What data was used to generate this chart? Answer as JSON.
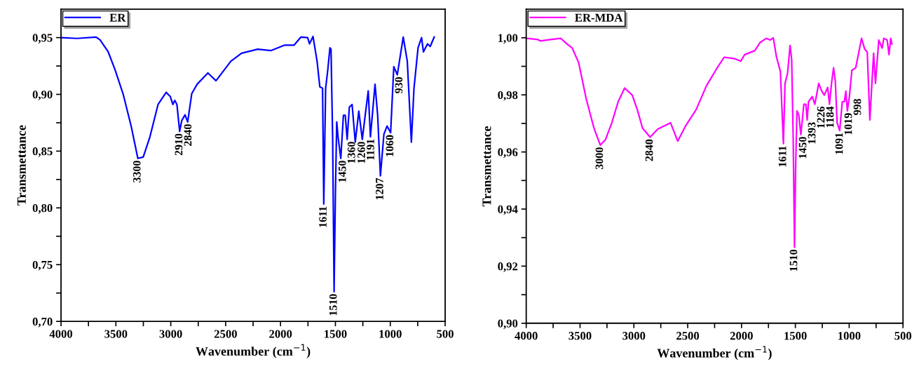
{
  "chart_data": [
    {
      "type": "line",
      "xlabel": "Wavenumber (cm$^{−1}$)",
      "ylabel": "Transmettance",
      "legend": "top left",
      "grid": false,
      "marker": "none",
      "line_style": "solid",
      "xlim": [
        4000,
        500
      ],
      "ylim": [
        0.7,
        0.975
      ],
      "xticks": [
        4000,
        {
          "value": 3750,
          "label": null
        },
        3500,
        {
          "value": 3250,
          "label": null
        },
        3000,
        {
          "value": 2750,
          "label": null
        },
        2500,
        {
          "value": 2250,
          "label": null
        },
        2000,
        {
          "value": 1750,
          "label": null
        },
        1500,
        {
          "value": 1250,
          "label": null
        },
        1000,
        {
          "value": 750,
          "label": null
        },
        500
      ],
      "yticks": [
        {
          "value": 0.7,
          "label": "0,70"
        },
        {
          "value": 0.725,
          "label": null
        },
        {
          "value": 0.75,
          "label": "0,75"
        },
        {
          "value": 0.775,
          "label": null
        },
        {
          "value": 0.8,
          "label": "0,80"
        },
        {
          "value": 0.825,
          "label": null
        },
        {
          "value": 0.85,
          "label": "0,85"
        },
        {
          "value": 0.875,
          "label": null
        },
        {
          "value": 0.9,
          "label": "0,90"
        },
        {
          "value": 0.925,
          "label": null
        },
        {
          "value": 0.95,
          "label": "0,95"
        }
      ],
      "series": [
        {
          "name": "ER",
          "color": "#0000ff",
          "x": [
            4000,
            3853,
            3681,
            3644,
            3570,
            3509,
            3435,
            3361,
            3300,
            3251,
            3190,
            3116,
            3042,
            3005,
            2981,
            2964,
            2944,
            2919,
            2900,
            2870,
            2846,
            2809,
            2760,
            2662,
            2588,
            2453,
            2355,
            2208,
            2085,
            1962,
            1876,
            1814,
            1753,
            1736,
            1704,
            1667,
            1642,
            1617,
            1606,
            1589,
            1569,
            1550,
            1540,
            1525,
            1512,
            1500,
            1488,
            1476,
            1451,
            1427,
            1410,
            1393,
            1373,
            1348,
            1319,
            1287,
            1255,
            1230,
            1201,
            1181,
            1139,
            1115,
            1090,
            1058,
            1029,
            997,
            968,
            936,
            882,
            845,
            808,
            784,
            747,
            715,
            698,
            661,
            636,
            600
          ],
          "values": [
            0.95,
            0.9493,
            0.9505,
            0.948,
            0.9374,
            0.922,
            0.9006,
            0.872,
            0.8436,
            0.8448,
            0.8626,
            0.8911,
            0.9018,
            0.8982,
            0.8911,
            0.8947,
            0.8911,
            0.8674,
            0.8769,
            0.882,
            0.8757,
            0.9006,
            0.9089,
            0.9189,
            0.912,
            0.9291,
            0.9362,
            0.9398,
            0.9386,
            0.9434,
            0.9434,
            0.9505,
            0.95,
            0.9445,
            0.951,
            0.9291,
            0.9066,
            0.9054,
            0.8033,
            0.9054,
            0.922,
            0.941,
            0.9398,
            0.8603,
            0.7261,
            0.8128,
            0.8757,
            0.8626,
            0.8436,
            0.8816,
            0.8816,
            0.8603,
            0.8887,
            0.8911,
            0.8579,
            0.8852,
            0.8603,
            0.8804,
            0.903,
            0.8626,
            0.9089,
            0.8816,
            0.8282,
            0.865,
            0.8721,
            0.8662,
            0.9244,
            0.9172,
            0.9505,
            0.9291,
            0.8579,
            0.9054,
            0.941,
            0.95,
            0.9374,
            0.9445,
            0.9422,
            0.9505
          ]
        }
      ],
      "annotations": [
        {
          "text": "3300",
          "x": 3300,
          "y": 0.8436
        },
        {
          "text": "2910",
          "x": 2919,
          "y": 0.8674
        },
        {
          "text": "2840",
          "x": 2846,
          "y": 0.8757
        },
        {
          "text": "1611",
          "x": 1606,
          "y": 0.8033
        },
        {
          "text": "1510",
          "x": 1512,
          "y": 0.7261
        },
        {
          "text": "1450",
          "x": 1451,
          "y": 0.8436
        },
        {
          "text": "1360",
          "x": 1393,
          "y": 0.8603
        },
        {
          "text": "1260",
          "x": 1255,
          "y": 0.8603
        },
        {
          "text": "1191",
          "x": 1181,
          "y": 0.8626
        },
        {
          "text": "1207",
          "x": 1090,
          "y": 0.8282
        },
        {
          "text": "1060",
          "x": 997,
          "y": 0.8662
        },
        {
          "text": "930",
          "x": 936,
          "y": 0.9172
        }
      ]
    },
    {
      "type": "line",
      "xlabel": "Wavenumber (cm$^{−1}$)",
      "ylabel": "Transmettance",
      "legend": "top left",
      "grid": false,
      "marker": "none",
      "line_style": "solid",
      "xlim": [
        4000,
        500
      ],
      "ylim": [
        0.9,
        1.01
      ],
      "xticks": [
        4000,
        {
          "value": 3750,
          "label": null
        },
        3500,
        {
          "value": 3250,
          "label": null
        },
        3000,
        {
          "value": 2750,
          "label": null
        },
        2500,
        {
          "value": 2250,
          "label": null
        },
        2000,
        {
          "value": 1750,
          "label": null
        },
        1500,
        {
          "value": 1250,
          "label": null
        },
        1000,
        {
          "value": 750,
          "label": null
        },
        500
      ],
      "yticks": [
        {
          "value": 0.9,
          "label": "0,90"
        },
        {
          "value": 0.91,
          "label": null
        },
        {
          "value": 0.92,
          "label": "0,92"
        },
        {
          "value": 0.93,
          "label": null
        },
        {
          "value": 0.94,
          "label": "0,94"
        },
        {
          "value": 0.95,
          "label": null
        },
        {
          "value": 0.96,
          "label": "0,96"
        },
        {
          "value": 0.97,
          "label": null
        },
        {
          "value": 0.98,
          "label": "0,98"
        },
        {
          "value": 0.99,
          "label": null
        },
        {
          "value": 1.0,
          "label": "1,00"
        }
      ],
      "series": [
        {
          "name": "ER-MDA",
          "color": "#ff00ff",
          "x": [
            4000,
            3893,
            3870,
            3775,
            3680,
            3620,
            3573,
            3514,
            3442,
            3371,
            3312,
            3264,
            3205,
            3146,
            3086,
            3015,
            2968,
            2920,
            2849,
            2778,
            2659,
            2593,
            2517,
            2422,
            2327,
            2232,
            2161,
            2066,
            2007,
            1971,
            1876,
            1829,
            1769,
            1734,
            1705,
            1675,
            1639,
            1611,
            1596,
            1572,
            1549,
            1534,
            1520,
            1508,
            1497,
            1485,
            1468,
            1449,
            1421,
            1402,
            1390,
            1378,
            1343,
            1319,
            1283,
            1255,
            1231,
            1200,
            1183,
            1164,
            1145,
            1129,
            1112,
            1088,
            1064,
            1045,
            1031,
            1017,
            998,
            975,
            939,
            885,
            856,
            832,
            808,
            797,
            773,
            756,
            725,
            694,
            678,
            647,
            630,
            614,
            603
          ],
          "values": [
            0.9998,
            0.9994,
            0.9989,
            0.9994,
            0.9998,
            0.9978,
            0.9964,
            0.9914,
            0.9785,
            0.9684,
            0.9624,
            0.9643,
            0.9702,
            0.9776,
            0.9824,
            0.9799,
            0.9748,
            0.9684,
            0.9652,
            0.968,
            0.9702,
            0.9638,
            0.9693,
            0.9748,
            0.9831,
            0.9891,
            0.9932,
            0.9927,
            0.9918,
            0.9941,
            0.9955,
            0.9983,
            0.9998,
            0.9992,
            1.0,
            0.9932,
            0.9882,
            0.9629,
            0.984,
            0.9877,
            0.9973,
            0.9923,
            0.9647,
            0.9266,
            0.9555,
            0.9744,
            0.973,
            0.9661,
            0.9767,
            0.9767,
            0.9712,
            0.9776,
            0.9794,
            0.9767,
            0.984,
            0.9813,
            0.9799,
            0.9826,
            0.9767,
            0.984,
            0.9895,
            0.9849,
            0.9702,
            0.9675,
            0.9776,
            0.9776,
            0.9813,
            0.9744,
            0.9794,
            0.9886,
            0.9895,
            0.9998,
            0.996,
            0.995,
            0.9712,
            0.9785,
            0.9946,
            0.984,
            0.9992,
            0.9964,
            0.9998,
            0.9992,
            0.9941,
            0.9998,
            0.9978
          ]
        }
      ],
      "annotations": [
        {
          "text": "3000",
          "x": 3312,
          "y": 0.9624
        },
        {
          "text": "2840",
          "x": 2849,
          "y": 0.9652
        },
        {
          "text": "1611",
          "x": 1611,
          "y": 0.9629
        },
        {
          "text": "1510",
          "x": 1508,
          "y": 0.9266
        },
        {
          "text": "1450",
          "x": 1449,
          "y": 0.9661
        },
        {
          "text": "1393",
          "x": 1390,
          "y": 0.9712
        },
        {
          "text": "1226",
          "x": 1319,
          "y": 0.9767
        },
        {
          "text": "1184",
          "x": 1183,
          "y": 0.9767
        },
        {
          "text": "1091",
          "x": 1088,
          "y": 0.9675
        },
        {
          "text": "1019",
          "x": 1017,
          "y": 0.9744
        },
        {
          "text": "998",
          "x": 998,
          "y": 0.9794
        }
      ]
    }
  ]
}
